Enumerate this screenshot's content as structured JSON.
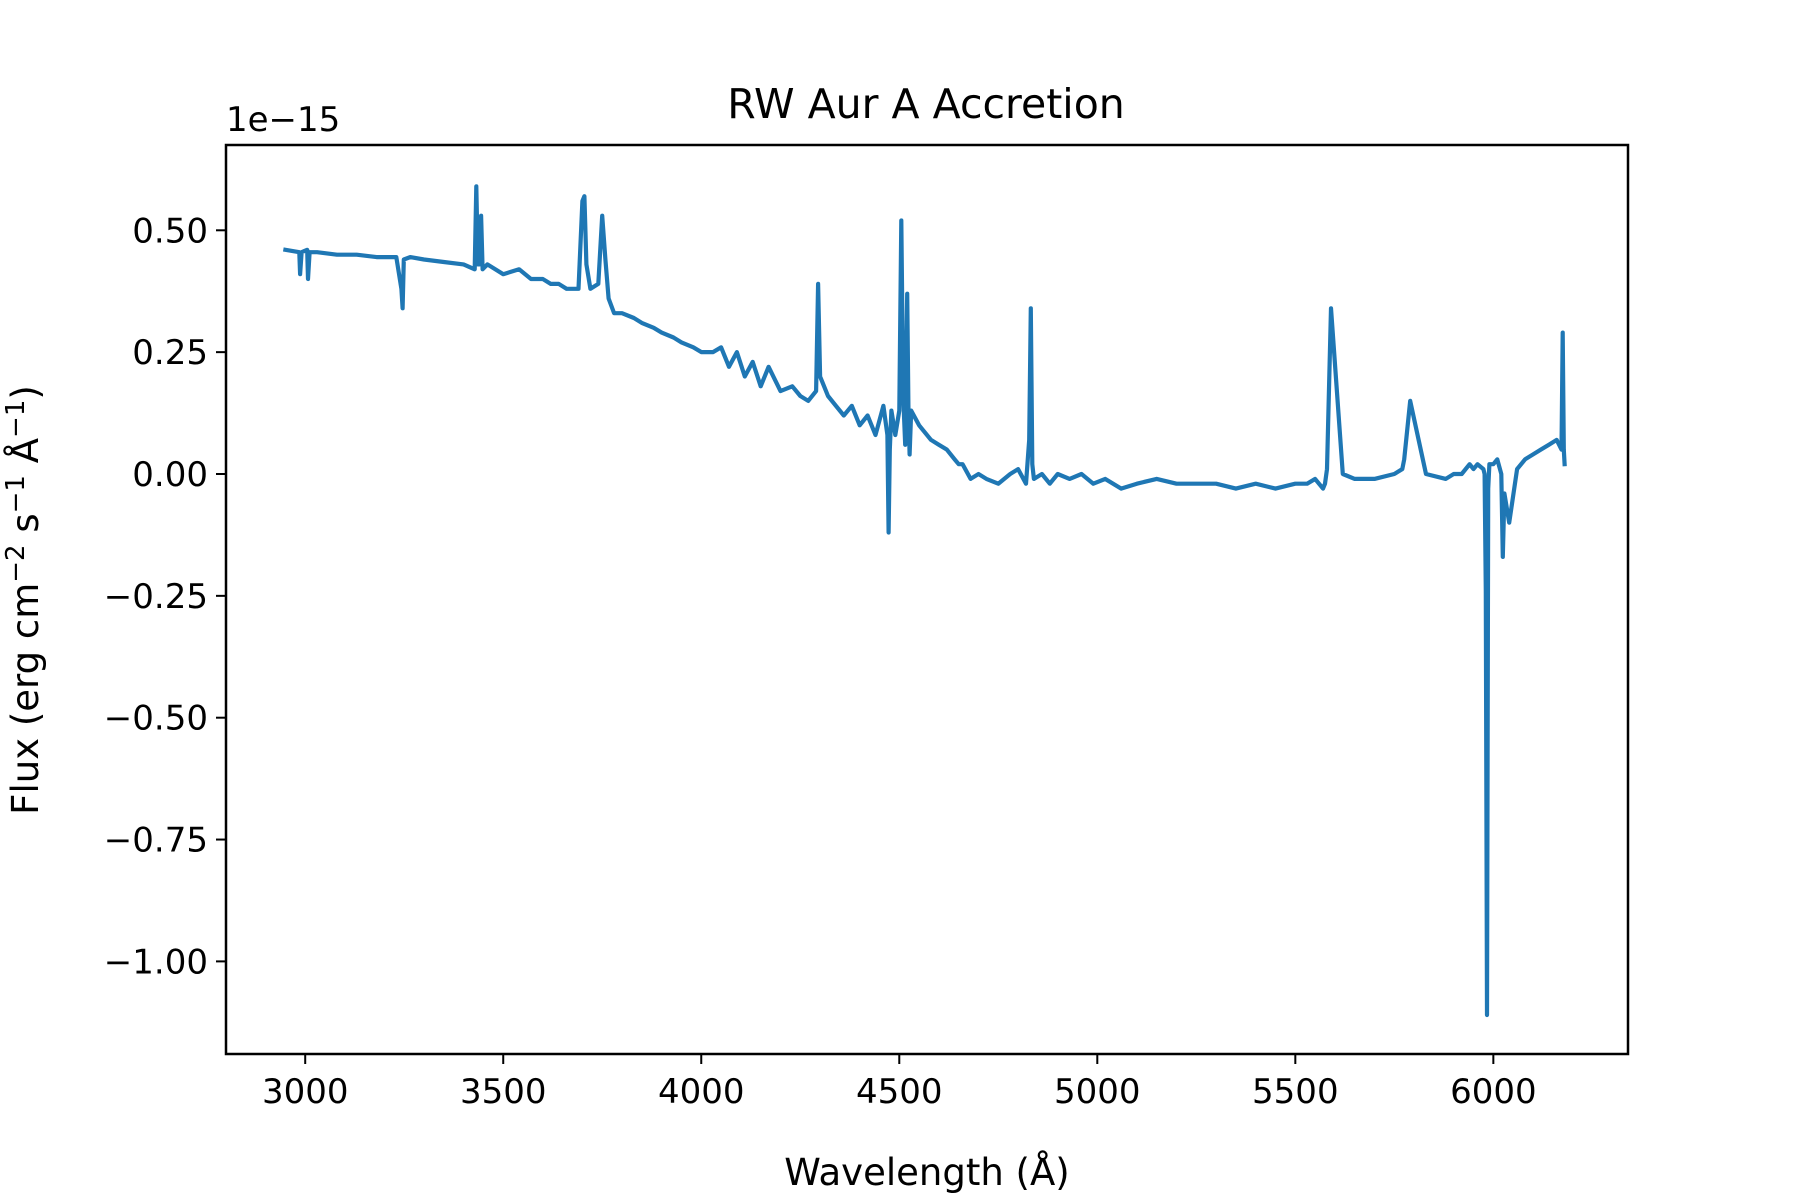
{
  "chart_data": {
    "type": "line",
    "title": "RW Aur A Accretion",
    "xlabel": "Wavelength (Å)",
    "ylabel_parts": {
      "prefix": "Flux (erg cm",
      "sup1": "−2",
      "mid": " s",
      "sup2": "−1",
      "mid2": " Å",
      "sup3": "−1",
      "suffix": ")"
    },
    "y_offset_label": "1e−15",
    "xlim": [
      2800,
      6340
    ],
    "ylim": [
      -1.19,
      0.675
    ],
    "xticks": [
      3000,
      3500,
      4000,
      4500,
      5000,
      5500,
      6000
    ],
    "xtick_labels": [
      "3000",
      "3500",
      "4000",
      "4500",
      "5000",
      "5500",
      "6000"
    ],
    "yticks": [
      0.5,
      0.25,
      0.0,
      -0.25,
      -0.5,
      -0.75,
      -1.0
    ],
    "ytick_labels": [
      "0.50",
      "0.25",
      "0.00",
      "−0.25",
      "−0.50",
      "−0.75",
      "−1.00"
    ],
    "line_color": "#1f77b4",
    "grid": false,
    "series": [
      {
        "x": [
          2950,
          2985,
          2987,
          2991,
          3005,
          3007,
          3011,
          3030,
          3080,
          3130,
          3180,
          3230,
          3243,
          3246,
          3249,
          3265,
          3300,
          3350,
          3400,
          3428,
          3432,
          3436,
          3440,
          3444,
          3448,
          3460,
          3500,
          3540,
          3570,
          3600,
          3620,
          3640,
          3660,
          3690,
          3700,
          3705,
          3710,
          3720,
          3740,
          3750,
          3758,
          3766,
          3780,
          3800,
          3830,
          3850,
          3880,
          3900,
          3930,
          3950,
          3980,
          4000,
          4030,
          4050,
          4070,
          4090,
          4110,
          4130,
          4150,
          4170,
          4200,
          4230,
          4250,
          4270,
          4290,
          4295,
          4300,
          4320,
          4340,
          4360,
          4380,
          4400,
          4420,
          4440,
          4460,
          4470,
          4473,
          4476,
          4480,
          4490,
          4500,
          4505,
          4510,
          4515,
          4520,
          4523,
          4526,
          4530,
          4550,
          4580,
          4600,
          4620,
          4640,
          4650,
          4660,
          4680,
          4700,
          4720,
          4750,
          4780,
          4800,
          4820,
          4828,
          4832,
          4836,
          4840,
          4860,
          4880,
          4900,
          4930,
          4960,
          4990,
          5020,
          5060,
          5100,
          5150,
          5200,
          5250,
          5300,
          5350,
          5400,
          5450,
          5500,
          5530,
          5550,
          5570,
          5575,
          5580,
          5590,
          5620,
          5650,
          5700,
          5750,
          5770,
          5775,
          5790,
          5830,
          5880,
          5900,
          5920,
          5940,
          5950,
          5960,
          5975,
          5978,
          5981,
          5984,
          5987,
          5990,
          6000,
          6010,
          6020,
          6024,
          6028,
          6040,
          6060,
          6080,
          6100,
          6120,
          6140,
          6160,
          6172,
          6175,
          6178,
          6180
        ],
        "y": [
          0.46,
          0.455,
          0.41,
          0.455,
          0.46,
          0.4,
          0.455,
          0.455,
          0.45,
          0.45,
          0.445,
          0.445,
          0.38,
          0.34,
          0.44,
          0.445,
          0.44,
          0.435,
          0.43,
          0.42,
          0.59,
          0.43,
          0.43,
          0.53,
          0.42,
          0.43,
          0.41,
          0.42,
          0.4,
          0.4,
          0.39,
          0.39,
          0.38,
          0.38,
          0.56,
          0.57,
          0.43,
          0.38,
          0.39,
          0.53,
          0.44,
          0.36,
          0.33,
          0.33,
          0.32,
          0.31,
          0.3,
          0.29,
          0.28,
          0.27,
          0.26,
          0.25,
          0.25,
          0.26,
          0.22,
          0.25,
          0.2,
          0.23,
          0.18,
          0.22,
          0.17,
          0.18,
          0.16,
          0.15,
          0.17,
          0.39,
          0.2,
          0.16,
          0.14,
          0.12,
          0.14,
          0.1,
          0.12,
          0.08,
          0.14,
          0.08,
          -0.12,
          0.05,
          0.13,
          0.08,
          0.13,
          0.52,
          0.16,
          0.06,
          0.37,
          0.14,
          0.04,
          0.13,
          0.1,
          0.07,
          0.06,
          0.05,
          0.03,
          0.02,
          0.02,
          -0.01,
          0.0,
          -0.01,
          -0.02,
          0.0,
          0.01,
          -0.02,
          0.07,
          0.34,
          0.02,
          -0.01,
          0.0,
          -0.02,
          0.0,
          -0.01,
          0.0,
          -0.02,
          -0.01,
          -0.03,
          -0.02,
          -0.01,
          -0.02,
          -0.02,
          -0.02,
          -0.03,
          -0.02,
          -0.03,
          -0.02,
          -0.02,
          -0.01,
          -0.03,
          -0.02,
          0.01,
          0.34,
          0.0,
          -0.01,
          -0.01,
          0.0,
          0.01,
          0.03,
          0.15,
          0.0,
          -0.01,
          0.0,
          0.0,
          0.02,
          0.01,
          0.02,
          0.01,
          0.0,
          -0.24,
          -1.11,
          -0.03,
          0.02,
          0.02,
          0.03,
          0.0,
          -0.17,
          -0.04,
          -0.1,
          0.01,
          0.03,
          0.04,
          0.05,
          0.06,
          0.07,
          0.05,
          0.29,
          0.05,
          0.02
        ]
      }
    ]
  }
}
